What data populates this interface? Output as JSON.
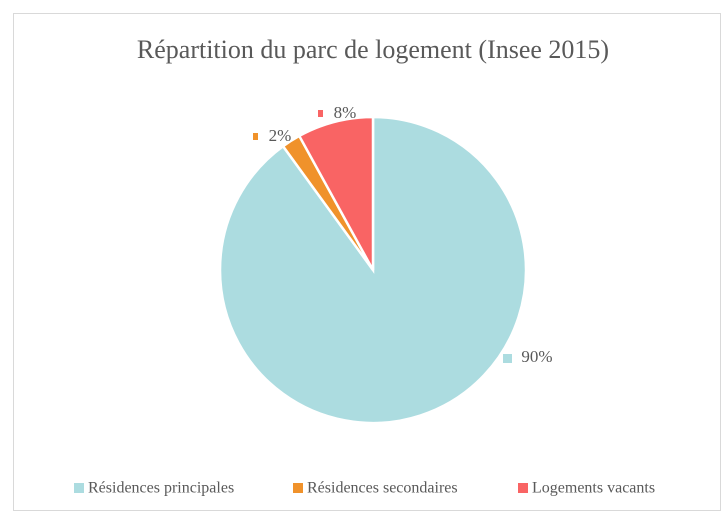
{
  "chart_data": {
    "type": "pie",
    "title": "Répartition du parc de logement (Insee 2015)",
    "categories": [
      "Résidences principales",
      "Résidences secondaires",
      "Logements vacants"
    ],
    "values": [
      90,
      2,
      8
    ],
    "value_labels": [
      "90%",
      "2%",
      "8%"
    ],
    "colors": [
      "#acdce0",
      "#f0922b",
      "#f96464"
    ],
    "legend": "bottom"
  }
}
